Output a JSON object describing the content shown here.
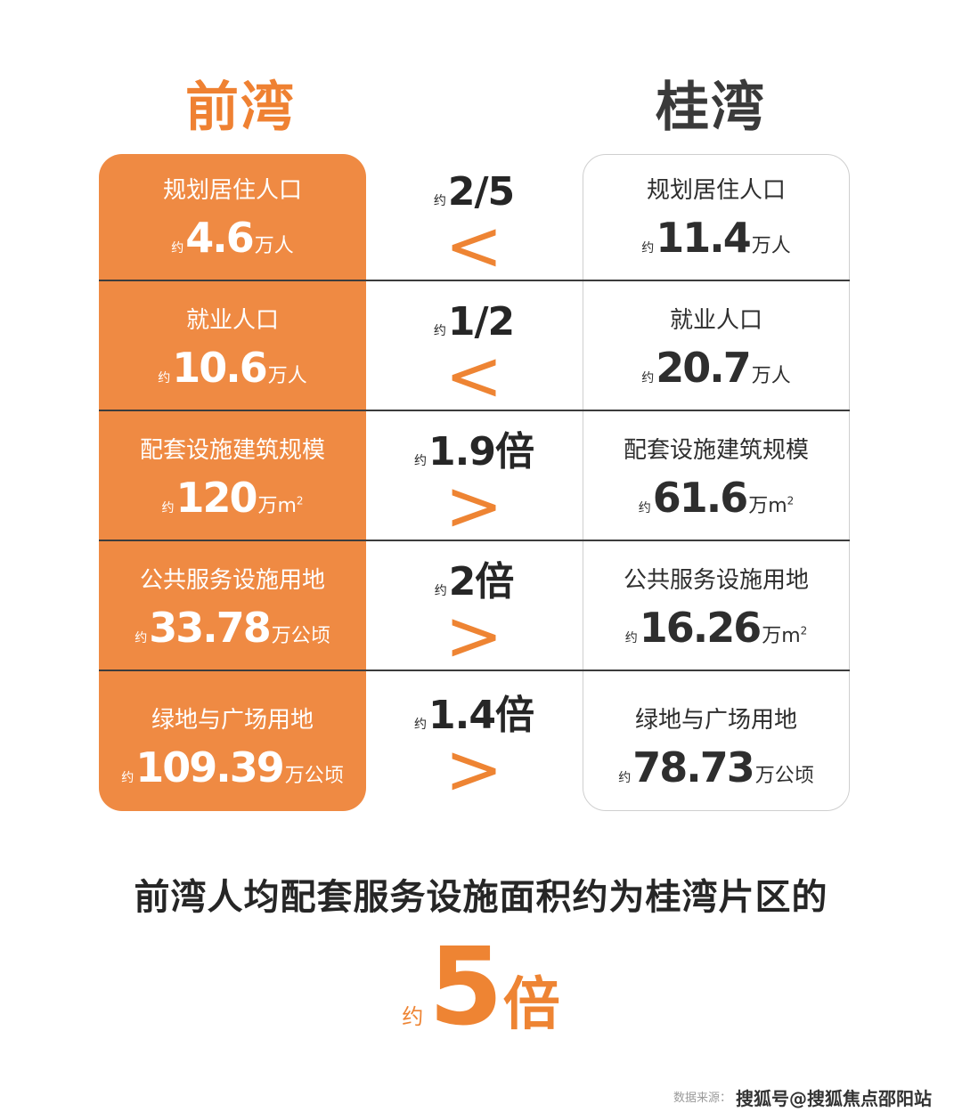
{
  "titles": {
    "left": "前湾",
    "right": "桂湾"
  },
  "approx": "约",
  "rows": [
    {
      "left": {
        "label": "规划居住人口",
        "value": "4.6",
        "unit": "万人",
        "sup": ""
      },
      "compare": {
        "ratio": "2/5",
        "symbol": "<"
      },
      "right": {
        "label": "规划居住人口",
        "value": "11.4",
        "unit": "万人",
        "sup": ""
      }
    },
    {
      "left": {
        "label": "就业人口",
        "value": "10.6",
        "unit": "万人",
        "sup": ""
      },
      "compare": {
        "ratio": "1/2",
        "symbol": "<"
      },
      "right": {
        "label": "就业人口",
        "value": "20.7",
        "unit": "万人",
        "sup": ""
      }
    },
    {
      "left": {
        "label": "配套设施建筑规模",
        "value": "120",
        "unit": "万m",
        "sup": "2"
      },
      "compare": {
        "ratio": "1.9倍",
        "symbol": ">"
      },
      "right": {
        "label": "配套设施建筑规模",
        "value": "61.6",
        "unit": "万m",
        "sup": "2"
      }
    },
    {
      "left": {
        "label": "公共服务设施用地",
        "value": "33.78",
        "unit": "万公顷",
        "sup": ""
      },
      "compare": {
        "ratio": "2倍",
        "symbol": ">"
      },
      "right": {
        "label": "公共服务设施用地",
        "value": "16.26",
        "unit": "万m",
        "sup": "2"
      }
    },
    {
      "left": {
        "label": "绿地与广场用地",
        "value": "109.39",
        "unit": "万公顷",
        "sup": ""
      },
      "compare": {
        "ratio": "1.4倍",
        "symbol": ">"
      },
      "right": {
        "label": "绿地与广场用地",
        "value": "78.73",
        "unit": "万公顷",
        "sup": ""
      }
    }
  ],
  "summary": "前湾人均配套服务设施面积约为桂湾片区的",
  "big": {
    "value": "5",
    "unit": "倍"
  },
  "source": "数据来源：",
  "watermark": "搜狐号@搜狐焦点邵阳站",
  "colors": {
    "accent": "#ef8a43",
    "dark": "#262626"
  }
}
